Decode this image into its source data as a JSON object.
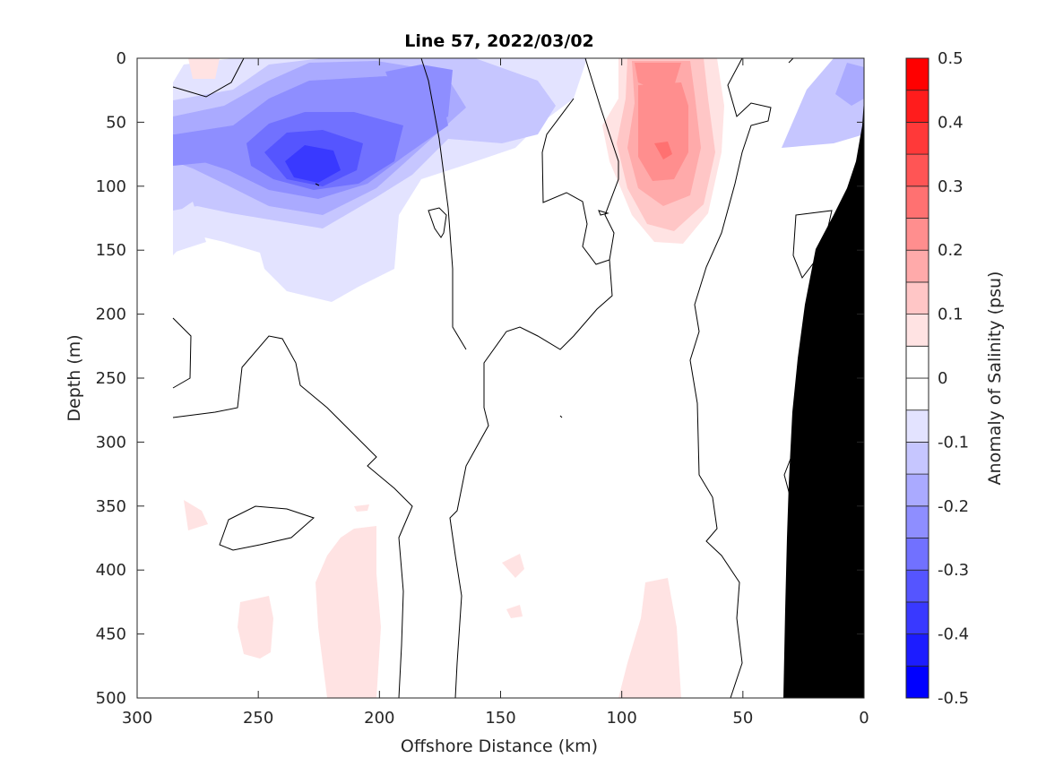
{
  "chart_data": {
    "type": "heatmap",
    "title": "Line 57, 2022/03/02",
    "xlabel": "Offshore Distance (km)",
    "ylabel": "Depth (m)",
    "colorbar_label": "Anomaly of Salinity (psu)",
    "xlim": [
      300,
      0
    ],
    "ylim": [
      0,
      500
    ],
    "x_reversed": true,
    "y_reversed": true,
    "x_ticks": [
      300,
      250,
      200,
      150,
      100,
      50,
      0
    ],
    "y_ticks": [
      0,
      50,
      100,
      150,
      200,
      250,
      300,
      350,
      400,
      450,
      500
    ],
    "colorbar": {
      "range": [
        -0.5,
        0.5
      ],
      "levels": [
        -0.5,
        -0.45,
        -0.4,
        -0.35,
        -0.3,
        -0.25,
        -0.2,
        -0.15,
        -0.1,
        -0.05,
        0,
        0.05,
        0.1,
        0.15,
        0.2,
        0.25,
        0.3,
        0.35,
        0.4,
        0.45,
        0.5
      ],
      "tick_values": [
        0.5,
        0.4,
        0.3,
        0.2,
        0.1,
        0,
        -0.1,
        -0.2,
        -0.3,
        -0.4,
        -0.5
      ],
      "tick_labels": [
        "0.5",
        "0.4",
        "0.3",
        "0.2",
        "0.1",
        "0",
        "-0.1",
        "-0.2",
        "-0.3",
        "-0.4",
        "-0.5"
      ],
      "colors": [
        "#0000ff",
        "#1c1cff",
        "#3939ff",
        "#5555ff",
        "#7171ff",
        "#8e8eff",
        "#aaaaff",
        "#c6c6ff",
        "#e3e3ff",
        "#ffffff",
        "#ffffff",
        "#ffe3e3",
        "#ffc6c6",
        "#ffaaaa",
        "#ff8e8e",
        "#ff7171",
        "#ff5555",
        "#ff3939",
        "#ff1c1c",
        "#ff0000"
      ]
    },
    "features": [
      {
        "x": 225,
        "y": 95,
        "value": -0.35
      },
      {
        "x": 178,
        "y": 35,
        "value": -0.2
      },
      {
        "x": 82,
        "y": 75,
        "value": 0.25
      },
      {
        "x": 85,
        "y": 10,
        "value": 0.2
      },
      {
        "x": 10,
        "y": 20,
        "value": -0.2
      },
      {
        "x": 205,
        "y": 430,
        "value": 0.05
      },
      {
        "x": 85,
        "y": 450,
        "value": 0.05
      }
    ],
    "bathymetry_color": "#000000"
  }
}
